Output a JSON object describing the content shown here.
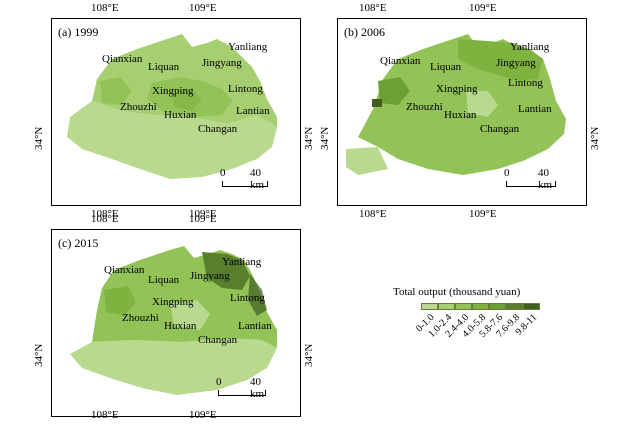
{
  "panels": [
    {
      "label": "(a) 1999",
      "top_ticks": [
        "108°E",
        "109°E"
      ],
      "bottom_ticks": [
        "108°E",
        "109°E"
      ],
      "left_tick": "34°N",
      "right_tick": "34°N"
    },
    {
      "label": "(b) 2006",
      "top_ticks": [
        "108°E",
        "109°E"
      ],
      "bottom_ticks": [
        "108°E",
        "109°E"
      ],
      "left_tick": "34°N",
      "right_tick": "34°N"
    },
    {
      "label": "(c) 2015",
      "top_ticks": [
        "108°E",
        "109°E"
      ],
      "bottom_ticks": [
        "108°E",
        "109°E"
      ],
      "left_tick": "34°N",
      "right_tick": "34°N"
    }
  ],
  "cities": [
    "Yanliang",
    "Qianxian",
    "Liquan",
    "Jingyang",
    "Lintong",
    "Xingping",
    "Zhouzhi",
    "Huxian",
    "Lantian",
    "Changan"
  ],
  "scale": {
    "zero": "0",
    "dist": "40 km"
  },
  "legend": {
    "title": "Total output (thousand yuan)",
    "classes": [
      "0-1.0",
      "1.0-2.4",
      "2.4-4.0",
      "4.0-5.8",
      "5.8-7.6",
      "7.6-9.8",
      "9.8-11"
    ],
    "colors": [
      "#b9d98f",
      "#a6cf72",
      "#93c257",
      "#7fb340",
      "#6c9f34",
      "#577f2c",
      "#3f5e20"
    ]
  }
}
